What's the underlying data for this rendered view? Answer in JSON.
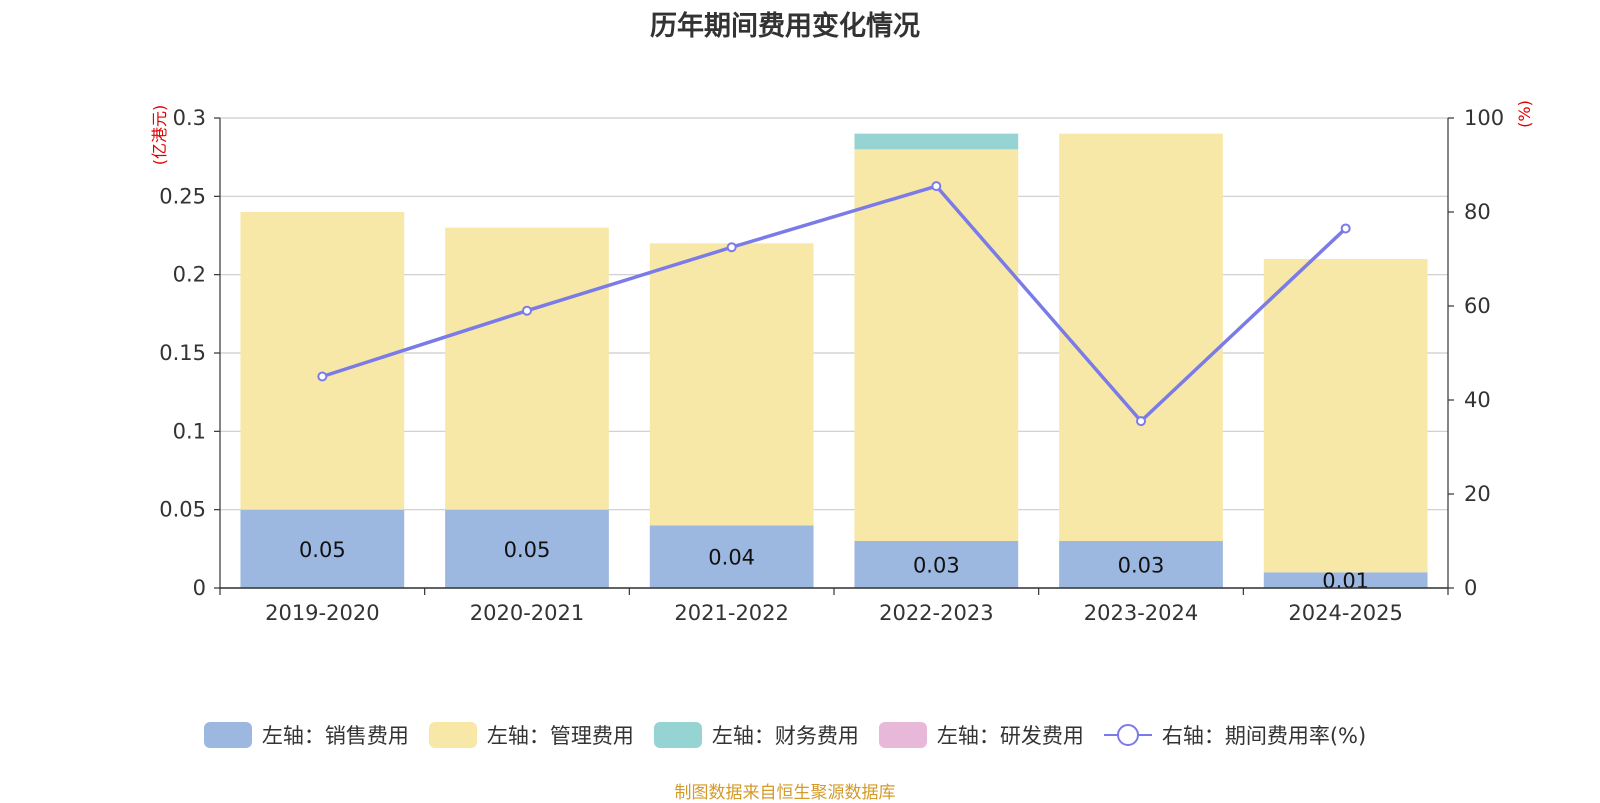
{
  "chart_data": {
    "type": "bar",
    "title": "历年期间费用变化情况",
    "categories": [
      "2019-2020",
      "2020-2021",
      "2021-2022",
      "2022-2023",
      "2023-2024",
      "2024-2025"
    ],
    "y_left": {
      "unit": "(亿港元)",
      "ylim": [
        0,
        0.3
      ],
      "ticks": [
        "0",
        "0.05",
        "0.1",
        "0.15",
        "0.2",
        "0.25",
        "0.3"
      ]
    },
    "y_right": {
      "unit": "(%)",
      "ylim": [
        0,
        100
      ],
      "ticks": [
        "0",
        "20",
        "40",
        "60",
        "80",
        "100"
      ]
    },
    "stacked": true,
    "grid": true,
    "legend_position": "bottom",
    "series": [
      {
        "name": "左轴：销售费用",
        "axis": "left",
        "type": "bar",
        "color": "#9db8e0",
        "values": [
          0.05,
          0.05,
          0.04,
          0.03,
          0.03,
          0.01
        ],
        "labels": [
          "0.05",
          "0.05",
          "0.04",
          "0.03",
          "0.03",
          "0.01"
        ]
      },
      {
        "name": "左轴：管理费用",
        "axis": "left",
        "type": "bar",
        "color": "#f7e8a8",
        "values": [
          0.19,
          0.18,
          0.18,
          0.25,
          0.26,
          0.2
        ]
      },
      {
        "name": "左轴：财务费用",
        "axis": "left",
        "type": "bar",
        "color": "#96d4d4",
        "values": [
          0,
          0,
          0,
          0.01,
          0,
          0
        ]
      },
      {
        "name": "左轴：研发费用",
        "axis": "left",
        "type": "bar",
        "color": "#e8b8d8",
        "values": [
          0,
          0,
          0,
          0,
          0,
          0
        ]
      },
      {
        "name": "右轴：期间费用率(%)",
        "axis": "right",
        "type": "line",
        "color": "#7b7be8",
        "values": [
          45,
          59,
          72.5,
          85.5,
          35.5,
          76.5
        ]
      }
    ]
  },
  "source_note": "制图数据来自恒生聚源数据库"
}
